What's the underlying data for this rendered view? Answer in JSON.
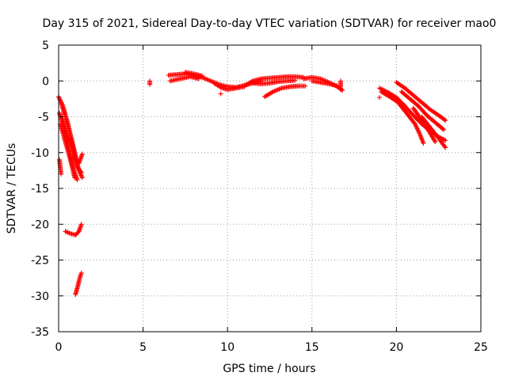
{
  "chart_data": {
    "type": "scatter",
    "title": "Day 315 of 2021, Sidereal Day-to-day VTEC variation (SDTVAR) for receiver mao0",
    "xlabel": "GPS time / hours",
    "ylabel": "SDTVAR / TECUs",
    "xlim": [
      0,
      25
    ],
    "ylim": [
      -35,
      5
    ],
    "xticks": [
      0,
      5,
      10,
      15,
      20,
      25
    ],
    "yticks": [
      5,
      0,
      -5,
      -10,
      -15,
      -20,
      -25,
      -30,
      -35
    ],
    "grid": true,
    "marker": "+",
    "series": [
      {
        "name": "SDTVAR",
        "color": "#ff0000",
        "segments": [
          [
            [
              0.0,
              -2.2
            ],
            [
              0.25,
              -3.5
            ],
            [
              0.5,
              -5.5
            ],
            [
              0.75,
              -8.0
            ],
            [
              1.0,
              -10.5
            ],
            [
              1.2,
              -12.5
            ],
            [
              1.4,
              -13.5
            ]
          ],
          [
            [
              0.05,
              -4.5
            ],
            [
              0.3,
              -6.5
            ],
            [
              0.6,
              -9.5
            ],
            [
              0.9,
              -12.5
            ],
            [
              1.1,
              -13.8
            ]
          ],
          [
            [
              0.1,
              -6.0
            ],
            [
              0.4,
              -8.5
            ],
            [
              0.7,
              -11.0
            ],
            [
              0.95,
              -13.5
            ]
          ],
          [
            [
              0.15,
              -3.0
            ],
            [
              0.45,
              -5.5
            ],
            [
              0.75,
              -8.0
            ],
            [
              1.0,
              -10.8
            ],
            [
              1.2,
              -11.5
            ],
            [
              1.4,
              -10.2
            ]
          ],
          [
            [
              0.05,
              -11.0
            ],
            [
              0.15,
              -13.0
            ]
          ],
          [
            [
              0.2,
              -5.0
            ],
            [
              0.5,
              -7.5
            ],
            [
              0.8,
              -9.5
            ],
            [
              1.1,
              -12.0
            ],
            [
              1.35,
              -12.8
            ]
          ],
          [
            [
              0.4,
              -21.0
            ],
            [
              0.7,
              -21.3
            ],
            [
              1.0,
              -21.5
            ],
            [
              1.2,
              -21.0
            ],
            [
              1.35,
              -20.0
            ]
          ],
          [
            [
              1.0,
              -29.8
            ],
            [
              1.15,
              -28.5
            ],
            [
              1.25,
              -27.5
            ],
            [
              1.35,
              -26.8
            ]
          ],
          [
            [
              5.4,
              0.0
            ],
            [
              5.4,
              -0.5
            ]
          ],
          [
            [
              6.5,
              0.8
            ],
            [
              7.0,
              0.9
            ],
            [
              7.5,
              1.0
            ],
            [
              8.0,
              0.8
            ],
            [
              8.5,
              0.5
            ],
            [
              9.0,
              0.0
            ],
            [
              9.5,
              -0.5
            ],
            [
              10.0,
              -0.8
            ],
            [
              10.5,
              -0.9
            ],
            [
              11.0,
              -0.6
            ],
            [
              11.5,
              -0.3
            ],
            [
              12.0,
              0.0
            ]
          ],
          [
            [
              6.6,
              0.0
            ],
            [
              7.2,
              0.3
            ],
            [
              7.8,
              0.6
            ],
            [
              8.3,
              0.3
            ]
          ],
          [
            [
              7.5,
              1.2
            ],
            [
              8.0,
              1.0
            ],
            [
              8.5,
              0.7
            ]
          ],
          [
            [
              9.2,
              -0.3
            ],
            [
              9.6,
              -0.9
            ],
            [
              10.0,
              -1.2
            ],
            [
              10.5,
              -1.0
            ],
            [
              11.0,
              -0.8
            ]
          ],
          [
            [
              9.6,
              -1.8
            ]
          ],
          [
            [
              11.0,
              -0.7
            ],
            [
              11.5,
              0.0
            ],
            [
              12.0,
              0.3
            ],
            [
              12.5,
              0.4
            ],
            [
              13.0,
              0.5
            ],
            [
              13.5,
              0.6
            ],
            [
              14.0,
              0.6
            ],
            [
              14.5,
              0.5
            ]
          ],
          [
            [
              11.5,
              -0.3
            ],
            [
              12.0,
              -0.4
            ],
            [
              12.5,
              -0.3
            ],
            [
              13.0,
              -0.1
            ],
            [
              13.5,
              0.0
            ],
            [
              14.0,
              0.1
            ]
          ],
          [
            [
              12.2,
              -2.2
            ],
            [
              12.7,
              -1.5
            ],
            [
              13.2,
              -1.0
            ],
            [
              13.7,
              -0.8
            ],
            [
              14.2,
              -0.7
            ],
            [
              14.6,
              -0.7
            ]
          ],
          [
            [
              14.5,
              0.3
            ],
            [
              15.0,
              0.5
            ],
            [
              15.5,
              0.3
            ],
            [
              16.0,
              -0.2
            ],
            [
              16.5,
              -0.8
            ],
            [
              16.8,
              -1.3
            ]
          ],
          [
            [
              15.0,
              0.0
            ],
            [
              15.5,
              -0.2
            ],
            [
              16.0,
              -0.4
            ],
            [
              16.5,
              -0.7
            ]
          ],
          [
            [
              16.7,
              0.0
            ],
            [
              16.7,
              -1.2
            ]
          ],
          [
            [
              19.0,
              -1.0
            ],
            [
              19.5,
              -1.6
            ],
            [
              20.0,
              -2.3
            ],
            [
              20.5,
              -3.5
            ],
            [
              21.0,
              -4.8
            ],
            [
              21.5,
              -6.0
            ],
            [
              22.0,
              -7.0
            ],
            [
              22.5,
              -7.8
            ],
            [
              22.9,
              -8.3
            ]
          ],
          [
            [
              19.1,
              -1.5
            ],
            [
              19.6,
              -2.2
            ],
            [
              20.1,
              -3.0
            ],
            [
              20.6,
              -4.5
            ],
            [
              21.1,
              -6.0
            ],
            [
              21.4,
              -7.5
            ],
            [
              21.6,
              -8.7
            ]
          ],
          [
            [
              19.0,
              -2.3
            ]
          ],
          [
            [
              20.0,
              -0.2
            ],
            [
              20.5,
              -1.0
            ],
            [
              21.0,
              -2.0
            ],
            [
              21.5,
              -3.0
            ],
            [
              22.0,
              -4.0
            ],
            [
              22.5,
              -4.8
            ],
            [
              22.9,
              -5.5
            ]
          ],
          [
            [
              20.3,
              -1.5
            ],
            [
              20.8,
              -2.5
            ],
            [
              21.3,
              -3.5
            ],
            [
              21.8,
              -4.8
            ],
            [
              22.3,
              -5.8
            ],
            [
              22.8,
              -6.8
            ]
          ],
          [
            [
              21.5,
              -5.0
            ],
            [
              22.0,
              -6.5
            ],
            [
              22.5,
              -8.0
            ],
            [
              22.9,
              -9.3
            ]
          ],
          [
            [
              21.0,
              -3.8
            ],
            [
              21.5,
              -5.5
            ],
            [
              22.0,
              -7.3
            ],
            [
              22.3,
              -8.5
            ]
          ]
        ]
      }
    ]
  }
}
